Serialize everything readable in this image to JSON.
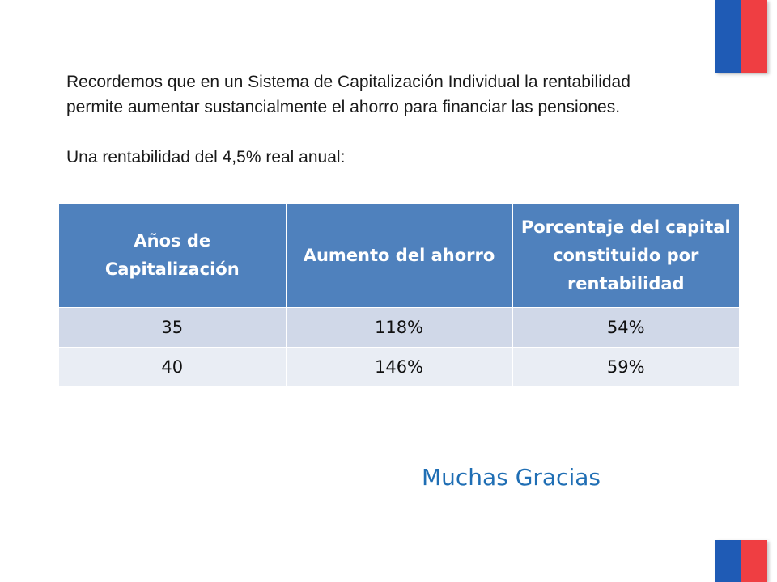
{
  "intro": {
    "paragraph": "Recordemos que en un Sistema de Capitalización Individual la rentabilidad permite aumentar sustancialmente el ahorro para financiar las pensiones.",
    "lead": "Una rentabilidad del 4,5% real anual:"
  },
  "table": {
    "headers": [
      "Años de Capitalización",
      "Aumento del ahorro",
      "Porcentaje del capital constituido por rentabilidad"
    ],
    "rows": [
      [
        "35",
        "118%",
        "54%"
      ],
      [
        "40",
        "146%",
        "59%"
      ]
    ]
  },
  "closing": "Muchas Gracias",
  "colors": {
    "header_bg": "#4f81bd",
    "row_odd": "#d0d8e8",
    "row_even": "#e9edf4",
    "flag_blue": "#1f5bb5",
    "flag_red": "#ef3e42",
    "closing_text": "#1f6eb4"
  }
}
